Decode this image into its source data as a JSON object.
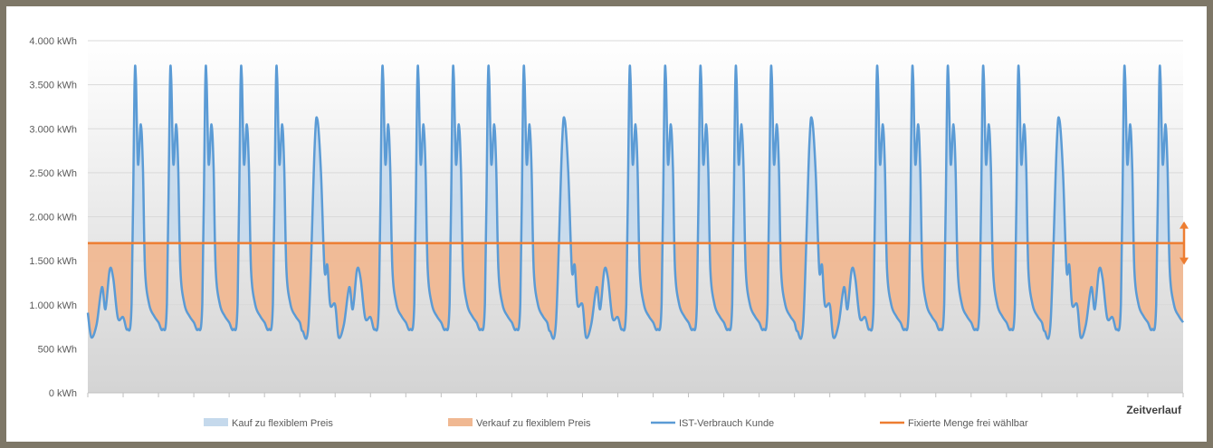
{
  "chart_data": {
    "type": "area",
    "title": "",
    "xlabel": "Zeitverlauf",
    "ylabel": "",
    "ylim": [
      0,
      4000
    ],
    "y_ticks": [
      {
        "value": 0,
        "label": "0 kWh"
      },
      {
        "value": 500,
        "label": "500 kWh"
      },
      {
        "value": 1000,
        "label": "1.000 kWh"
      },
      {
        "value": 1500,
        "label": "1.500 kWh"
      },
      {
        "value": 2000,
        "label": "2.000 kWh"
      },
      {
        "value": 2500,
        "label": "2.500 kWh"
      },
      {
        "value": 3000,
        "label": "3.000 kWh"
      },
      {
        "value": 3500,
        "label": "3.500 kWh"
      },
      {
        "value": 4000,
        "label": "4.000 kWh"
      }
    ],
    "grid": true,
    "legend_position": "bottom",
    "colors": {
      "buy_fill": "#c5d9ec",
      "sell_fill": "#f0b892",
      "consumption_line": "#5b9bd5",
      "fixed_line": "#ed7d31",
      "background_top": "#ffffff",
      "background_bottom": "#d4d4d4"
    },
    "fixed_quantity": 1700,
    "series": [
      {
        "name": "Kauf zu flexiblem Preis",
        "kind": "fill-above-fixed"
      },
      {
        "name": "Verkauf zu flexiblem Preis",
        "kind": "fill-below-fixed"
      },
      {
        "name": "IST-Verbrauch Kunde",
        "kind": "line"
      },
      {
        "name": "Fixierte Menge frei wählbar",
        "kind": "line"
      }
    ],
    "x_period_count": 31,
    "day_pattern": {
      "weekday": {
        "night_low": 720,
        "morning_peak": 3580,
        "midday_dip": 2600,
        "afternoon_peak": 3050,
        "evening": 1000
      },
      "saturday": {
        "night_low": 700,
        "peak": 3100,
        "evening": 1400
      },
      "sunday": {
        "night_low": 630,
        "peak_a": 1200,
        "dip": 950,
        "peak_b": 1400
      }
    },
    "days": [
      "sun",
      "mon",
      "tue",
      "wed",
      "thu",
      "fri",
      "sat",
      "sun",
      "mon",
      "tue",
      "wed",
      "thu",
      "fri",
      "sat",
      "sun",
      "mon",
      "tue",
      "wed",
      "thu",
      "fri",
      "sat",
      "sun",
      "mon",
      "tue",
      "wed",
      "thu",
      "fri",
      "sat",
      "sun",
      "mon",
      "tue"
    ]
  }
}
